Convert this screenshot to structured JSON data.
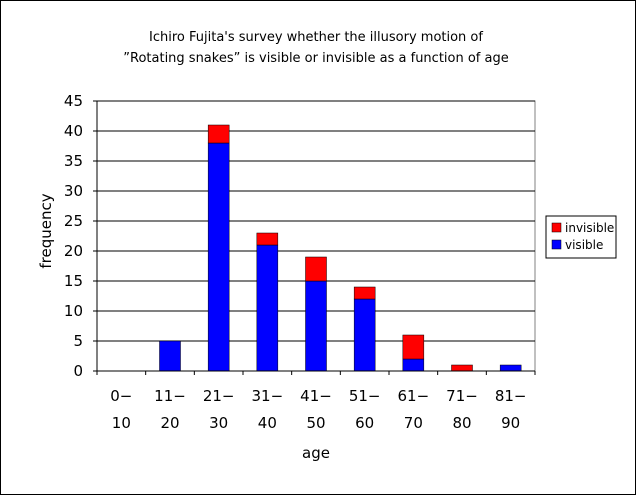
{
  "chart_data": {
    "type": "bar",
    "stacked": true,
    "title_lines": [
      "Ichiro Fujita's survey whether the illusory motion of",
      "”Rotating snakes” is visible or invisible as a function of age"
    ],
    "xlabel": "age",
    "ylabel": "frequency",
    "categories": [
      [
        "0−",
        "10"
      ],
      [
        "11−",
        "20"
      ],
      [
        "21−",
        "30"
      ],
      [
        "31−",
        "40"
      ],
      [
        "41−",
        "50"
      ],
      [
        "51−",
        "60"
      ],
      [
        "61−",
        "70"
      ],
      [
        "71−",
        "80"
      ],
      [
        "81−",
        "90"
      ]
    ],
    "series": [
      {
        "name": "visible",
        "color": "#0000ff",
        "values": [
          0,
          5,
          38,
          21,
          15,
          12,
          2,
          0,
          1
        ]
      },
      {
        "name": "invisible",
        "color": "#ff0000",
        "values": [
          0,
          0,
          3,
          2,
          4,
          2,
          4,
          1,
          0
        ]
      }
    ],
    "legend_order": [
      "invisible",
      "visible"
    ],
    "ylim": [
      0,
      45
    ],
    "yticks": [
      0,
      5,
      10,
      15,
      20,
      25,
      30,
      35,
      40,
      45
    ],
    "grid": true,
    "legend_position": "right"
  }
}
